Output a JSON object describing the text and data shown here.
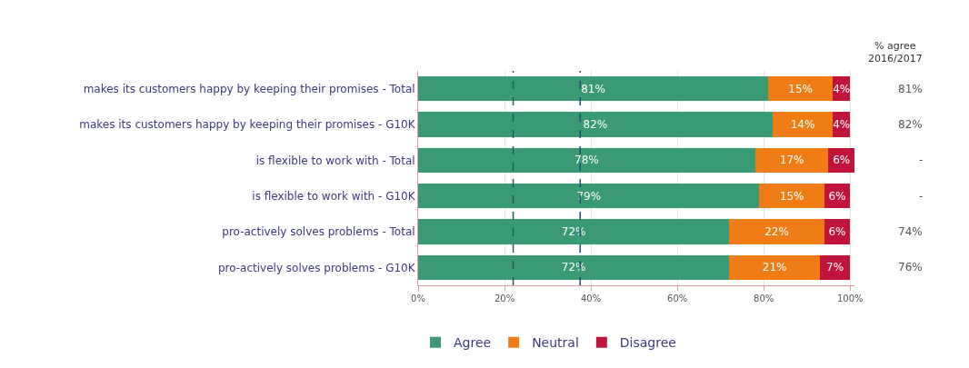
{
  "chart_data": {
    "type": "bar",
    "orientation": "horizontal",
    "stacked": true,
    "categories": [
      "makes its customers happy by keeping their promises - Total",
      "makes its customers happy by keeping their promises - G10K",
      "is flexible to work with - Total",
      "is flexible to work with - G10K",
      "pro-actively solves problems - Total",
      "pro-actively solves problems - G10K"
    ],
    "series": [
      {
        "name": "Agree",
        "color": "#3a9a75",
        "values": [
          81,
          82,
          78,
          79,
          72,
          72
        ],
        "value_labels": [
          "81%",
          "82%",
          "78%",
          "79%",
          "72%",
          "72%"
        ]
      },
      {
        "name": "Neutral",
        "color": "#f07c16",
        "values": [
          15,
          14,
          17,
          15,
          22,
          21
        ],
        "value_labels": [
          "15%",
          "14%",
          "17%",
          "15%",
          "22%",
          "21%"
        ]
      },
      {
        "name": "Disagree",
        "color": "#c0143c",
        "values": [
          4,
          4,
          6,
          6,
          6,
          7
        ],
        "value_labels": [
          "4%",
          "4%",
          "6%",
          "6%",
          "6%",
          "7%"
        ]
      }
    ],
    "xlim": [
      0,
      101
    ],
    "xticks": [
      {
        "value": 0,
        "label": "0%"
      },
      {
        "value": 20,
        "label": "20%"
      },
      {
        "value": 40,
        "label": "40%"
      },
      {
        "value": 60,
        "label": "60%"
      },
      {
        "value": 80,
        "label": "80%"
      },
      {
        "value": 100,
        "label": "100%"
      }
    ],
    "grid": "x",
    "legend": "bottom",
    "ref_lines": [
      {
        "axis": "x",
        "value": 22,
        "color": "#1f5f55",
        "line_style": "dashed"
      },
      {
        "axis": "x",
        "value": 37.5,
        "color": "#1f4f70",
        "line_style": "dashed"
      }
    ],
    "annotations": [
      "% agree\n2016/2017",
      "81%",
      "82%",
      "-",
      "-",
      "74%",
      "76%"
    ]
  }
}
